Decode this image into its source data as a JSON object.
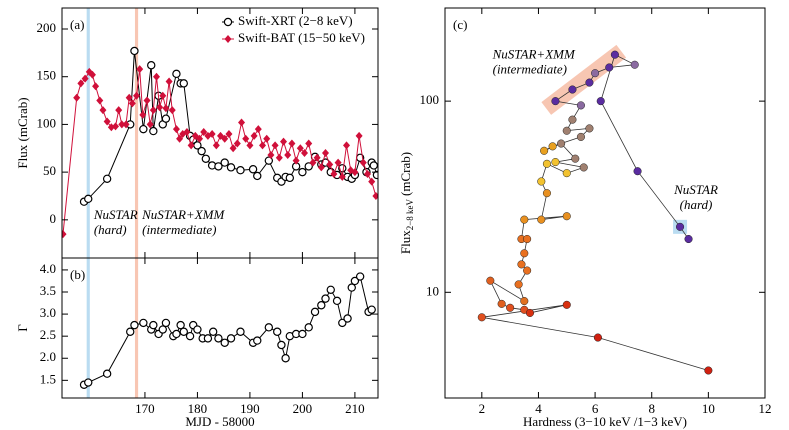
{
  "chart_data": [
    {
      "type": "line",
      "label": "(a)",
      "ylabel": "Flux (mCrab)",
      "xlim": [
        154.2,
        214.4
      ],
      "xticks": [
        170,
        180,
        190,
        200,
        210
      ],
      "xticklabels": false,
      "ylim": [
        -40,
        222
      ],
      "yticks": [
        0,
        50,
        100,
        150,
        200
      ],
      "legend": "upper right",
      "bands": [
        {
          "x": [
            158.9,
            159.5
          ],
          "color": "#a9d3ee",
          "text_color": "#5aa8d8",
          "label": [
            "NuSTAR",
            "(hard)"
          ]
        },
        {
          "x": [
            168.1,
            168.7
          ],
          "color": "#f6b8a0",
          "text_color": "#f08060",
          "label": [
            "NuSTAR+XMM",
            "(intermediate)"
          ]
        }
      ],
      "series": [
        {
          "name": "Swift-XRT (2−8 keV)",
          "color": "#000000",
          "marker": "circle-open",
          "x": [
            158.4,
            159.2,
            162.8,
            167.2,
            168,
            169.7,
            171.2,
            171.6,
            172.6,
            173.4,
            174,
            176,
            176.8,
            177.4,
            178.6,
            179.2,
            180,
            180.8,
            181.6,
            182.8,
            184,
            185.2,
            186.4,
            188.2,
            190.6,
            191.4,
            193.6,
            195.2,
            196,
            196.8,
            197.6,
            198.8,
            200,
            201.2,
            202.4,
            203.6,
            204.4,
            205.4,
            206.6,
            207.6,
            208.6,
            209.4,
            210,
            211,
            212.2,
            213.2,
            213.6,
            214.2
          ],
          "values": [
            19,
            22,
            43,
            100,
            177,
            95,
            162,
            93,
            130,
            100,
            106,
            153,
            143,
            143,
            88,
            84,
            78,
            72,
            64,
            57,
            56,
            60,
            55,
            52,
            53,
            46,
            62,
            44,
            40,
            45,
            44,
            56,
            50,
            56,
            66,
            58,
            60,
            50,
            47,
            54,
            45,
            43,
            47,
            65,
            50,
            60,
            57,
            47
          ]
        },
        {
          "name": "Swift-BAT (15−50 keV)",
          "color": "#d0103a",
          "marker": "diamond",
          "x": [
            154.4,
            157,
            157.8,
            158.6,
            159.4,
            160,
            160.6,
            161.4,
            162,
            162.8,
            163.6,
            164.4,
            165,
            165.6,
            166.4,
            167,
            167.6,
            168.4,
            169,
            169.6,
            170.4,
            171,
            171.6,
            172.2,
            172.8,
            173.4,
            174,
            174.6,
            175.2,
            176,
            176.6,
            177.2,
            178,
            178.8,
            179.6,
            180.4,
            181.2,
            182,
            182.8,
            183.6,
            184.4,
            185.2,
            186,
            186.8,
            187.6,
            188.4,
            189.2,
            190,
            190.8,
            191.6,
            192.4,
            193.2,
            194,
            194.8,
            195.6,
            196.4,
            197.2,
            198,
            198.8,
            199.6,
            200.4,
            201.2,
            202,
            202.8,
            203.6,
            204.4,
            205.2,
            206,
            206.8,
            207.6,
            208.4,
            209.2,
            210,
            210.8,
            211.6,
            212.4,
            213.2,
            214
          ],
          "values": [
            -15,
            128,
            143,
            148,
            155,
            152,
            140,
            125,
            115,
            103,
            97,
            98,
            115,
            100,
            100,
            128,
            122,
            130,
            158,
            110,
            125,
            100,
            115,
            150,
            118,
            130,
            117,
            145,
            115,
            95,
            85,
            90,
            92,
            78,
            88,
            85,
            92,
            88,
            90,
            78,
            88,
            85,
            90,
            75,
            80,
            102,
            85,
            78,
            88,
            95,
            78,
            85,
            68,
            78,
            65,
            82,
            68,
            80,
            62,
            75,
            70,
            80,
            60,
            65,
            55,
            70,
            58,
            48,
            60,
            45,
            78,
            52,
            50,
            88,
            60,
            48,
            40,
            25
          ]
        }
      ]
    },
    {
      "type": "line",
      "label": "(b)",
      "ylabel": "Γ",
      "xlabel": "MJD - 58000",
      "xlim": [
        154.2,
        214.4
      ],
      "xticks": [
        170,
        180,
        190,
        200,
        210
      ],
      "ylim": [
        1.1,
        4.27
      ],
      "yticks": [
        1.5,
        {
          "value": 2,
          "label": "2.0"
        },
        2.5,
        {
          "value": 3,
          "label": "3.0"
        },
        3.5,
        {
          "value": 4,
          "label": "4.0"
        }
      ],
      "bands": [
        {
          "x": [
            158.9,
            159.5
          ],
          "color": "#a9d3ee"
        },
        {
          "x": [
            168.1,
            168.7
          ],
          "color": "#f6b8a0"
        }
      ],
      "series": [
        {
          "color": "#000000",
          "marker": "circle-open",
          "x": [
            158.4,
            159.2,
            162.8,
            167.2,
            168,
            169.7,
            171.2,
            171.6,
            172.6,
            173.4,
            174,
            175.4,
            176,
            176.8,
            177.4,
            178.6,
            179.2,
            180,
            181,
            182,
            183,
            184,
            185.2,
            186.4,
            188.2,
            190.6,
            191.4,
            193.6,
            195.2,
            196,
            196.8,
            197.6,
            198.8,
            200,
            201.2,
            202.4,
            203.6,
            204.4,
            205.4,
            206.6,
            207.6,
            208.6,
            209.4,
            210,
            211,
            212.6,
            213.2
          ],
          "values": [
            1.4,
            1.45,
            1.65,
            2.6,
            2.75,
            2.8,
            2.65,
            2.75,
            2.55,
            2.65,
            2.8,
            2.5,
            2.55,
            2.75,
            2.6,
            2.5,
            2.75,
            2.65,
            2.45,
            2.45,
            2.6,
            2.45,
            2.35,
            2.45,
            2.6,
            2.35,
            2.4,
            2.7,
            2.6,
            2.3,
            2.0,
            2.5,
            2.55,
            2.55,
            2.7,
            3.05,
            3.2,
            3.35,
            3.55,
            3.3,
            2.8,
            2.9,
            3.6,
            3.75,
            3.85,
            3.05,
            3.1
          ]
        }
      ]
    },
    {
      "type": "scatter",
      "label": "(c)",
      "log_y": true,
      "xlabel": "Hardness (3−10 keV /1−3 keV)",
      "ylabel": "Flux",
      "ylabel_sub": "2−8 keV",
      "ylabel_unit": "(mCrab)",
      "xlim": [
        0.7,
        12
      ],
      "xticks": [
        2,
        4,
        6,
        8,
        10,
        12
      ],
      "ylim": [
        2.8,
        307
      ],
      "yticks": [
        10,
        100
      ],
      "highlights": [
        {
          "x": [
            4.5,
            6.7
          ],
          "y": [
            97,
            172
          ],
          "color": "#f6b8a0",
          "text_color": "#f08060",
          "label": [
            "NuSTAR+XMM",
            "(intermediate)"
          ]
        },
        {
          "x": [
            9
          ],
          "y": [
            22
          ],
          "color": "#a9d3ee",
          "text_color": "#5aa8d8",
          "label": [
            "NuSTAR",
            "(hard)"
          ]
        }
      ],
      "series": [
        {
          "color": "#333333",
          "x": [
            9.3,
            9,
            7.5,
            6.2,
            6.7,
            7.4,
            6.5,
            6,
            5.8,
            5.2,
            4.6,
            5.5,
            5.2,
            5,
            5.8,
            5.5,
            4.5,
            4.2,
            4.8,
            5.3,
            4.6,
            5.6,
            5,
            4.3,
            4.1,
            4.3,
            4.1,
            5,
            3.5,
            3.4,
            3.6,
            3.5,
            3.4,
            3.6,
            3.3,
            3.5,
            2.3,
            2.7,
            3,
            3.5,
            3.7,
            5,
            2,
            6.1,
            10
          ],
          "values": [
            19,
            22,
            43,
            100,
            175,
            155,
            150,
            140,
            125,
            115,
            100,
            95,
            80,
            70,
            72,
            65,
            58,
            55,
            60,
            50,
            48,
            45,
            42,
            47,
            38,
            33,
            24,
            25,
            24,
            19,
            19,
            16,
            14,
            13,
            11,
            9,
            11.5,
            8.7,
            8.3,
            8.1,
            7.8,
            8.6,
            7.4,
            5.8,
            3.9
          ],
          "colors": [
            "#5a2ca0",
            "#5a2ca0",
            "#5a2ca0",
            "#5a2ca0",
            "#5a2ca0",
            "#8a6aa0",
            "#5a2ca0",
            "#8a6aa0",
            "#5a2ca0",
            "#5a2ca0",
            "#5a2ca0",
            "#8a6aa0",
            "#a08070",
            "#a08070",
            "#a08070",
            "#a08070",
            "#e8a020",
            "#e8a020",
            "#a08070",
            "#a08070",
            "#f2c230",
            "#a08070",
            "#f2c230",
            "#f2c230",
            "#f2c230",
            "#e89020",
            "#e89020",
            "#e89020",
            "#e89020",
            "#e87020",
            "#e87020",
            "#e87020",
            "#e87020",
            "#e87020",
            "#e87020",
            "#e07020",
            "#e06020",
            "#e06020",
            "#e05020",
            "#e05020",
            "#d83010",
            "#d83010",
            "#e05020",
            "#d02010",
            "#d02010"
          ]
        }
      ]
    }
  ]
}
